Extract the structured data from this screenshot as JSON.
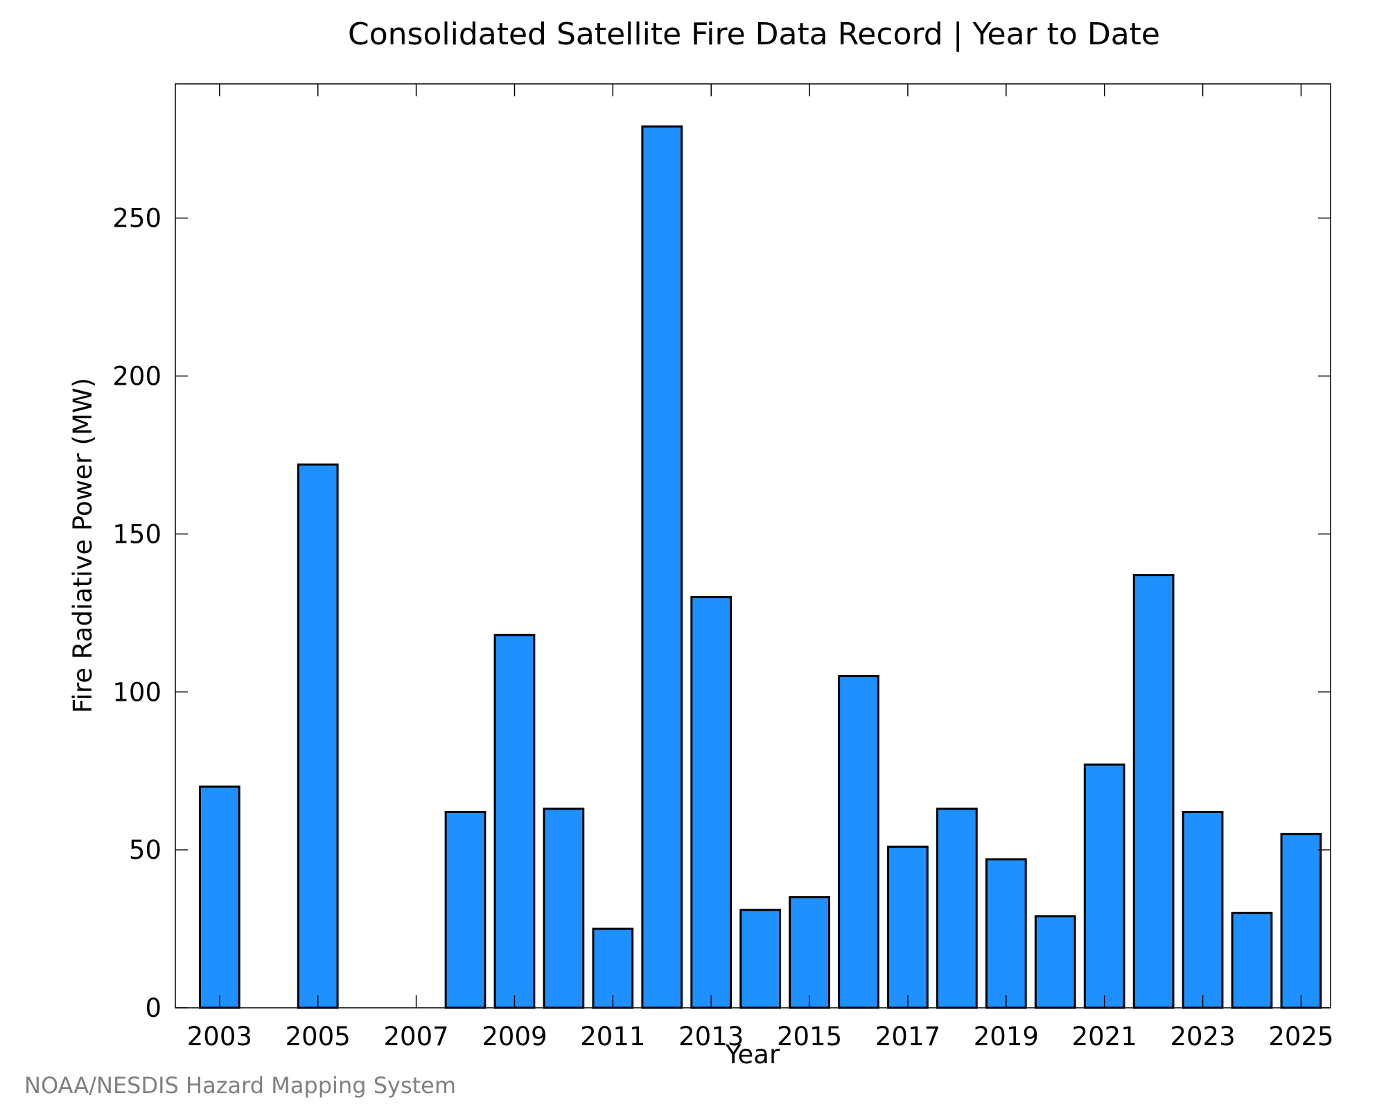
{
  "chart_data": {
    "type": "bar",
    "title": "Consolidated Satellite Fire Data Record | Year to Date",
    "xlabel": "Year",
    "ylabel": "Fire Radiative Power (MW)",
    "ylim": [
      0,
      292.5
    ],
    "yticks": [
      0,
      50,
      100,
      150,
      200,
      250
    ],
    "xticks": [
      2003,
      2005,
      2007,
      2009,
      2011,
      2013,
      2015,
      2017,
      2019,
      2021,
      2023,
      2025
    ],
    "x": [
      2003,
      2004,
      2005,
      2006,
      2007,
      2008,
      2009,
      2010,
      2011,
      2012,
      2013,
      2014,
      2015,
      2016,
      2017,
      2018,
      2019,
      2020,
      2021,
      2022,
      2023,
      2024,
      2025
    ],
    "values": [
      70,
      0,
      172,
      0,
      0,
      62,
      118,
      63,
      25,
      279,
      130,
      31,
      35,
      105,
      51,
      63,
      47,
      29,
      77,
      137,
      62,
      30,
      55
    ],
    "grid": false,
    "bar_color": "#1e90ff",
    "edge_color": "#000000"
  },
  "source_note": "NOAA/NESDIS Hazard Mapping System"
}
